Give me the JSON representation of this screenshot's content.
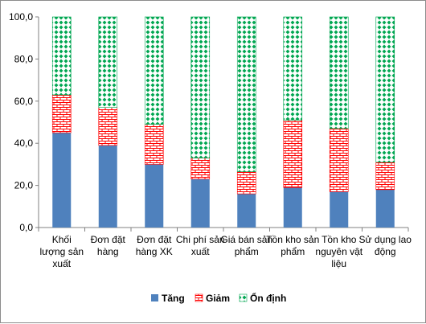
{
  "chart_data": {
    "type": "bar",
    "stacked": true,
    "categories": [
      [
        "Khối",
        "lượng sản",
        "xuất"
      ],
      [
        "Đơn đặt",
        "hàng"
      ],
      [
        "Đơn đặt",
        "hàng XK"
      ],
      [
        "Chi phí sản",
        "xuất"
      ],
      [
        "Giá bán sản",
        "phẩm"
      ],
      [
        "Tồn kho sản",
        "phẩm"
      ],
      [
        "Tồn kho",
        "nguyên vật",
        "liệu"
      ],
      [
        "Sử dụng lao",
        "động"
      ]
    ],
    "series": [
      {
        "name": "Tăng",
        "values": [
          45.0,
          39.0,
          30.0,
          23.0,
          16.0,
          19.0,
          17.0,
          18.0
        ],
        "color": "#4f81bd",
        "pattern": "solid"
      },
      {
        "name": "Giảm",
        "values": [
          18.0,
          18.0,
          19.0,
          10.0,
          10.5,
          32.0,
          30.0,
          13.0
        ],
        "color": "#ff0000",
        "pattern": "brick"
      },
      {
        "name": "Ổn định",
        "values": [
          37.0,
          43.0,
          51.0,
          67.0,
          73.5,
          49.0,
          53.0,
          69.0
        ],
        "color": "#00a651",
        "pattern": "diamond"
      }
    ],
    "ylim": [
      0,
      100
    ],
    "yticks": [
      "0,0",
      "20,0",
      "40,0",
      "60,0",
      "80,0",
      "100,0"
    ],
    "grid": false,
    "legend_position": "bottom",
    "xlabel": "",
    "ylabel": "",
    "title": ""
  }
}
